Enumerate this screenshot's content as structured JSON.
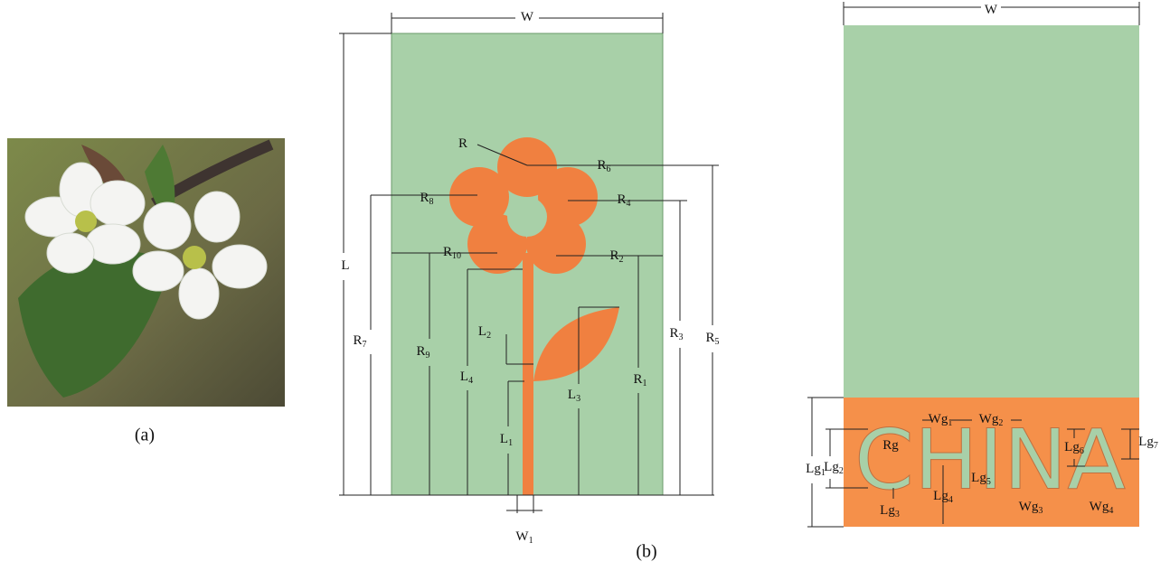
{
  "panel_a": {
    "caption": "(a)"
  },
  "panel_b": {
    "caption": "(b)",
    "flower": {
      "labels": [
        {
          "base": "W"
        },
        {
          "base": "L"
        },
        {
          "base": "R"
        },
        {
          "base": "R",
          "sub": "6"
        },
        {
          "base": "R",
          "sub": "8"
        },
        {
          "base": "R",
          "sub": "4"
        },
        {
          "base": "R",
          "sub": "10"
        },
        {
          "base": "R",
          "sub": "2"
        },
        {
          "base": "L",
          "sub": "2"
        },
        {
          "base": "R",
          "sub": "7"
        },
        {
          "base": "R",
          "sub": "9"
        },
        {
          "base": "L",
          "sub": "4"
        },
        {
          "base": "L",
          "sub": "3"
        },
        {
          "base": "R",
          "sub": "1"
        },
        {
          "base": "R",
          "sub": "3"
        },
        {
          "base": "R",
          "sub": "5"
        },
        {
          "base": "L",
          "sub": "1"
        },
        {
          "base": "W",
          "sub": "1"
        }
      ]
    },
    "ground": {
      "slot_text": "CHINA",
      "labels": [
        {
          "base": "W"
        },
        {
          "base": "Rg"
        },
        {
          "base": "Wg",
          "sub": "1"
        },
        {
          "base": "Wg",
          "sub": "2"
        },
        {
          "base": "Lg",
          "sub": "6"
        },
        {
          "base": "Lg",
          "sub": "7"
        },
        {
          "base": "Lg",
          "sub": "1"
        },
        {
          "base": "Lg",
          "sub": "2"
        },
        {
          "base": "Lg",
          "sub": "5"
        },
        {
          "base": "Lg",
          "sub": "3"
        },
        {
          "base": "Lg",
          "sub": "4"
        },
        {
          "base": "Wg",
          "sub": "3"
        },
        {
          "base": "Wg",
          "sub": "4"
        }
      ]
    }
  }
}
